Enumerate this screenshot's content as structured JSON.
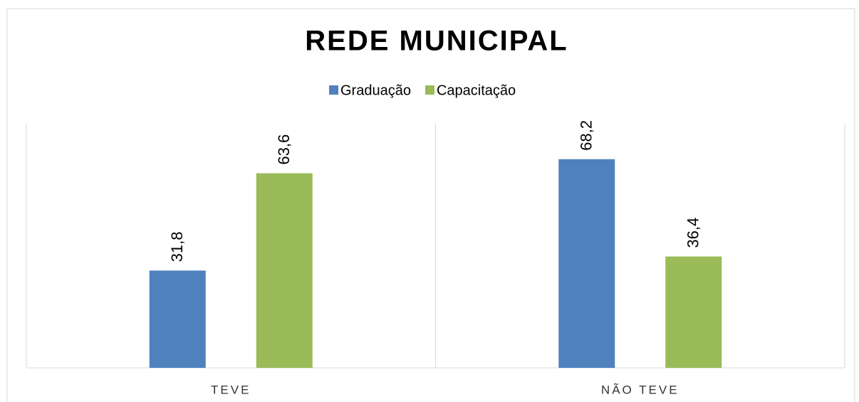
{
  "chart_data": {
    "type": "bar",
    "title": "REDE MUNICIPAL",
    "categories": [
      "TEVE",
      "NÃO TEVE"
    ],
    "series": [
      {
        "name": "Graduação",
        "color": "#4f81bd",
        "values": [
          31.8,
          68.2
        ],
        "value_labels": [
          "31,8",
          "68,2"
        ]
      },
      {
        "name": "Capacitação",
        "color": "#9bbb59",
        "values": [
          63.6,
          36.4
        ],
        "value_labels": [
          "63,6",
          "36,4"
        ]
      }
    ],
    "ylim": [
      0,
      80
    ],
    "legend": "top"
  }
}
